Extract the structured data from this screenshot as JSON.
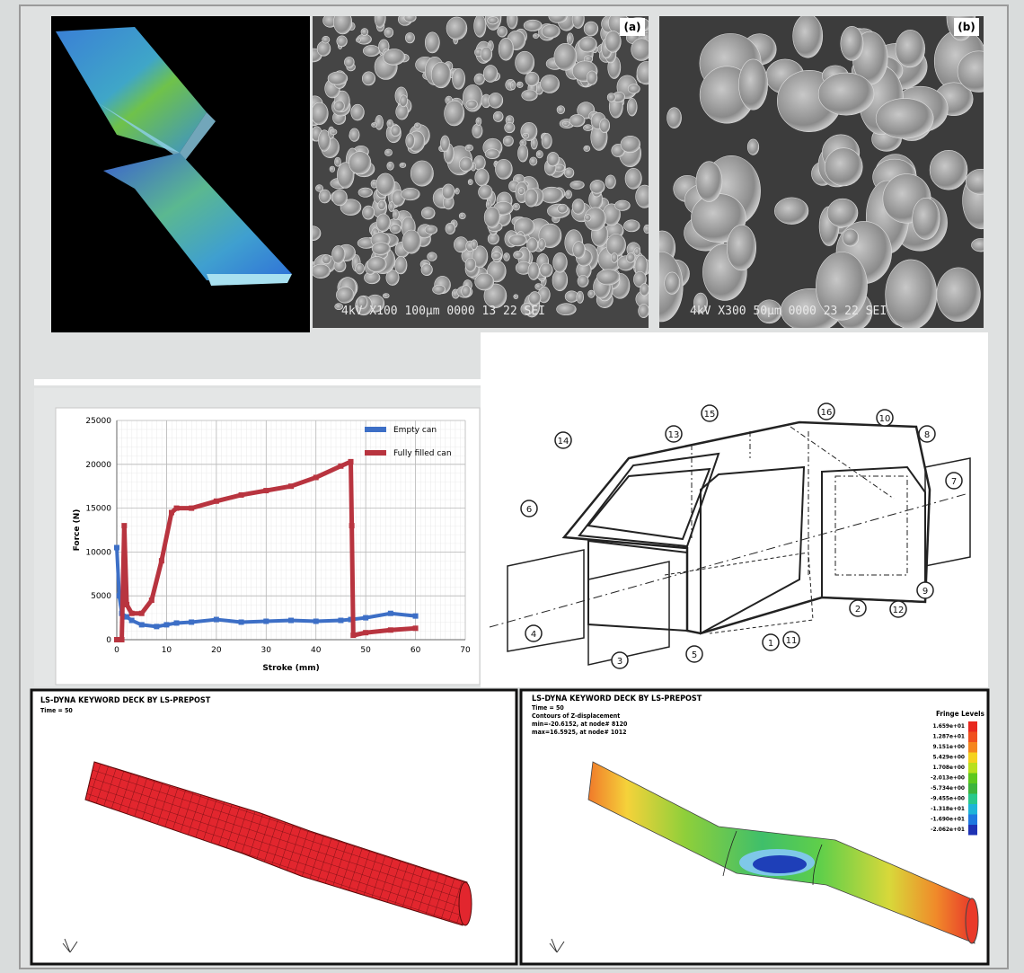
{
  "sem": {
    "a": {
      "panel": "(a)",
      "caption": "4kV   X100  100μm  0000  13 22  SEI"
    },
    "b": {
      "panel": "(b)",
      "caption": "4kV   X300   50μm  0000  23 22  SEI"
    }
  },
  "chart_data": {
    "type": "line",
    "xlabel": "Stroke (mm)",
    "ylabel": "Force (N)",
    "xlim": [
      0,
      70
    ],
    "xticks": [
      0,
      10,
      20,
      30,
      40,
      50,
      60,
      70
    ],
    "ylim": [
      0,
      25000
    ],
    "yticks": [
      0,
      5000,
      10000,
      15000,
      20000,
      25000
    ],
    "grid": true,
    "legend": "upper right",
    "series": [
      {
        "name": "Empty can",
        "color": "#3d6fc6",
        "x": [
          0,
          0.5,
          1,
          2,
          3,
          5,
          8,
          10,
          12,
          15,
          20,
          25,
          30,
          35,
          40,
          45,
          47,
          50,
          55,
          60
        ],
        "values": [
          10500,
          5000,
          3000,
          2600,
          2200,
          1700,
          1500,
          1700,
          1900,
          2000,
          2300,
          2000,
          2100,
          2200,
          2100,
          2200,
          2300,
          2500,
          3000,
          2700
        ]
      },
      {
        "name": "Fully filled can",
        "color": "#b8343f",
        "x": [
          0,
          1,
          1.5,
          2,
          3,
          5,
          7,
          9,
          11,
          12,
          15,
          20,
          25,
          30,
          35,
          40,
          45,
          47,
          47.2,
          47.5,
          50,
          55,
          60
        ],
        "values": [
          0,
          0,
          13000,
          4000,
          3000,
          3000,
          4500,
          9000,
          14500,
          15000,
          15000,
          15800,
          16500,
          17000,
          17500,
          18500,
          19800,
          20300,
          13000,
          500,
          800,
          1100,
          1300
        ]
      }
    ]
  },
  "diagram": {
    "callouts": [
      "1",
      "2",
      "3",
      "4",
      "5",
      "6",
      "7",
      "8",
      "9",
      "10",
      "11",
      "12",
      "13",
      "14",
      "15",
      "16"
    ]
  },
  "sim_left": {
    "header": "LS-DYNA KEYWORD DECK BY LS-PREPOST",
    "time": "Time =        50"
  },
  "sim_right": {
    "header": "LS-DYNA KEYWORD DECK BY LS-PREPOST",
    "time": "Time =        50",
    "contour": "Contours of Z-displacement",
    "min": "min=-20.6152, at node# 8120",
    "max": "max=16.5925, at node# 1012",
    "fringe_title": "Fringe Levels",
    "fringe_levels": [
      "1.659e+01",
      "1.287e+01",
      "9.151e+00",
      "5.429e+00",
      "1.708e+00",
      "-2.013e+00",
      "-5.734e+00",
      "-9.455e+00",
      "-1.318e+01",
      "-1.690e+01",
      "-2.062e+01"
    ]
  }
}
